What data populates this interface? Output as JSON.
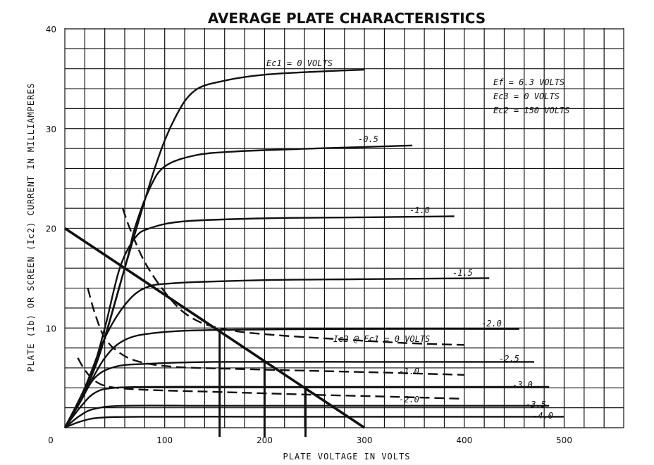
{
  "chart_data": {
    "type": "line",
    "title": "AVERAGE PLATE CHARACTERISTICS",
    "xlabel": "PLATE VOLTAGE IN VOLTS",
    "ylabel": "PLATE (Ib) OR SCREEN (Ic2) CURRENT IN MILLIAMPERES",
    "xlim": [
      0,
      560
    ],
    "ylim": [
      0,
      40
    ],
    "x_ticks": [
      "0",
      "100",
      "200",
      "300",
      "400",
      "500"
    ],
    "y_ticks": [
      "10",
      "20",
      "30",
      "40"
    ],
    "grid": true,
    "conditions": [
      "Ef = 6.3 VOLTS",
      "Ec3 = 0 VOLTS",
      "Ec2 = 150 VOLTS"
    ],
    "plate_curves": [
      {
        "label": "Ec1 = 0 VOLTS",
        "points": [
          [
            0,
            0
          ],
          [
            30,
            6
          ],
          [
            60,
            16
          ],
          [
            90,
            26
          ],
          [
            110,
            31
          ],
          [
            130,
            33.8
          ],
          [
            160,
            34.8
          ],
          [
            200,
            35.4
          ],
          [
            250,
            35.7
          ],
          [
            300,
            35.9
          ]
        ]
      },
      {
        "label": "-0.5",
        "points": [
          [
            0,
            0
          ],
          [
            30,
            6
          ],
          [
            60,
            16
          ],
          [
            70,
            20
          ],
          [
            85,
            24
          ],
          [
            100,
            26.2
          ],
          [
            130,
            27.3
          ],
          [
            170,
            27.7
          ],
          [
            250,
            28.0
          ],
          [
            348,
            28.3
          ]
        ]
      },
      {
        "label": "-1.0",
        "points": [
          [
            0,
            0
          ],
          [
            25,
            5
          ],
          [
            40,
            10
          ],
          [
            55,
            16
          ],
          [
            70,
            19
          ],
          [
            85,
            20
          ],
          [
            120,
            20.7
          ],
          [
            200,
            21.0
          ],
          [
            300,
            21.1
          ],
          [
            390,
            21.2
          ]
        ]
      },
      {
        "label": "-1.5",
        "points": [
          [
            0,
            0
          ],
          [
            20,
            4
          ],
          [
            40,
            9
          ],
          [
            60,
            12.3
          ],
          [
            80,
            14
          ],
          [
            110,
            14.5
          ],
          [
            200,
            14.8
          ],
          [
            300,
            14.9
          ],
          [
            425,
            15.0
          ]
        ]
      },
      {
        "label": "-2.0",
        "points": [
          [
            0,
            0
          ],
          [
            20,
            3.5
          ],
          [
            40,
            7
          ],
          [
            60,
            8.8
          ],
          [
            90,
            9.5
          ],
          [
            150,
            9.8
          ],
          [
            300,
            9.9
          ],
          [
            455,
            9.9
          ]
        ]
      },
      {
        "label": "-2.5",
        "points": [
          [
            0,
            0
          ],
          [
            15,
            2.5
          ],
          [
            30,
            5
          ],
          [
            50,
            6.1
          ],
          [
            80,
            6.4
          ],
          [
            150,
            6.6
          ],
          [
            300,
            6.6
          ],
          [
            470,
            6.6
          ]
        ]
      },
      {
        "label": "-3.0",
        "points": [
          [
            0,
            0
          ],
          [
            15,
            2
          ],
          [
            30,
            3.5
          ],
          [
            50,
            4
          ],
          [
            100,
            4.1
          ],
          [
            200,
            4.1
          ],
          [
            300,
            4.1
          ],
          [
            485,
            4.1
          ]
        ]
      },
      {
        "label": "-3.5",
        "points": [
          [
            0,
            0
          ],
          [
            15,
            1.2
          ],
          [
            30,
            1.9
          ],
          [
            60,
            2.2
          ],
          [
            150,
            2.2
          ],
          [
            300,
            2.2
          ],
          [
            485,
            2.2
          ]
        ]
      },
      {
        "label": "-4.0",
        "points": [
          [
            0,
            0
          ],
          [
            15,
            0.6
          ],
          [
            35,
            1.0
          ],
          [
            80,
            1.1
          ],
          [
            200,
            1.1
          ],
          [
            300,
            1.1
          ],
          [
            500,
            1.1
          ]
        ]
      }
    ],
    "screen_curves": [
      {
        "label": "Ic2 @ Ec1 = 0 VOLTS",
        "points": [
          [
            58,
            22
          ],
          [
            65,
            20
          ],
          [
            78,
            17
          ],
          [
            90,
            15
          ],
          [
            105,
            13
          ],
          [
            120,
            11.5
          ],
          [
            140,
            10.4
          ],
          [
            170,
            9.7
          ],
          [
            210,
            9.3
          ],
          [
            270,
            8.9
          ],
          [
            340,
            8.5
          ],
          [
            400,
            8.3
          ]
        ]
      },
      {
        "label": "-1.0",
        "points": [
          [
            23,
            14
          ],
          [
            30,
            11.5
          ],
          [
            40,
            9
          ],
          [
            55,
            7.5
          ],
          [
            75,
            6.6
          ],
          [
            110,
            6.1
          ],
          [
            170,
            5.9
          ],
          [
            250,
            5.7
          ],
          [
            330,
            5.5
          ],
          [
            400,
            5.3
          ]
        ]
      },
      {
        "label": "-2.0",
        "points": [
          [
            13,
            7
          ],
          [
            20,
            5.8
          ],
          [
            30,
            4.7
          ],
          [
            45,
            4.1
          ],
          [
            80,
            3.8
          ],
          [
            150,
            3.6
          ],
          [
            250,
            3.3
          ],
          [
            330,
            3.1
          ],
          [
            400,
            2.9
          ]
        ]
      }
    ],
    "load_line": {
      "points": [
        [
          0,
          20
        ],
        [
          300,
          0
        ]
      ]
    },
    "operating_points": [
      {
        "x": 155,
        "y": 9.7
      },
      {
        "x": 200,
        "y": 6.7
      },
      {
        "x": 241,
        "y": 3.9
      }
    ]
  }
}
